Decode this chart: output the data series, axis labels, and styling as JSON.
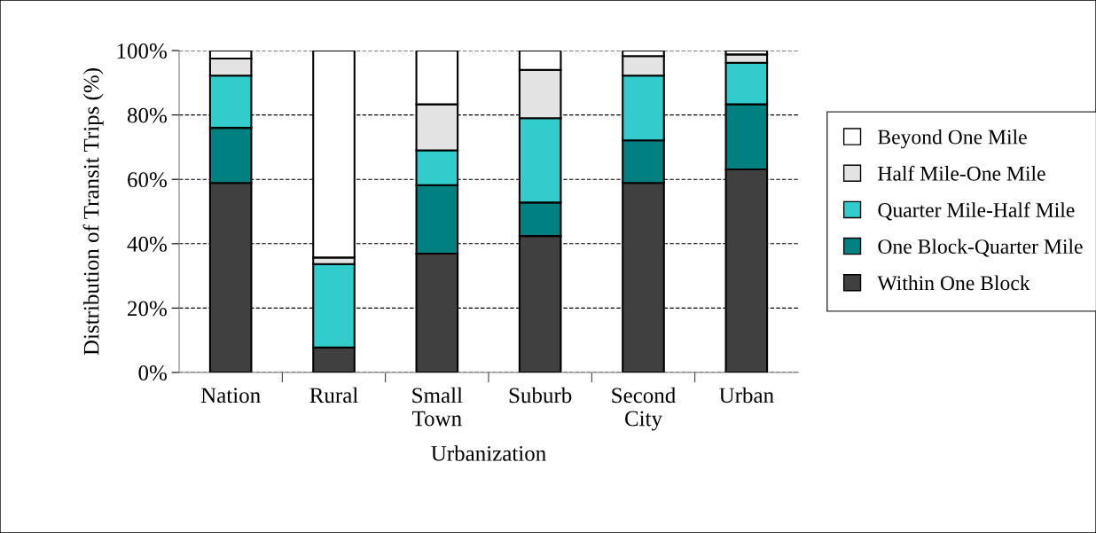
{
  "chart_data": {
    "type": "bar",
    "stacked": true,
    "xlabel": "Urbanization",
    "ylabel": "Distribution of Transit Trips (%)",
    "categories": [
      "Nation",
      "Rural",
      "Small\nTown",
      "Suburb",
      "Second\nCity",
      "Urban"
    ],
    "series": [
      {
        "name": "Within One Block",
        "color": "#404040",
        "values": [
          58.9,
          7.8,
          36.9,
          42.4,
          58.9,
          63.1
        ]
      },
      {
        "name": "One Block-Quarter Mile",
        "color": "#008080",
        "values": [
          17.1,
          0,
          21.3,
          10.4,
          13.2,
          20.2
        ]
      },
      {
        "name": "Quarter Mile-Half Mile",
        "color": "#33cccc",
        "values": [
          16.2,
          25.9,
          10.8,
          26.2,
          20.1,
          12.9
        ]
      },
      {
        "name": "Half Mile-One Mile",
        "color": "#e3e3e3",
        "values": [
          5.3,
          2.0,
          14.3,
          15.0,
          6.1,
          2.6
        ]
      },
      {
        "name": "Beyond One Mile",
        "color": "#ffffff",
        "values": [
          2.5,
          64.3,
          16.7,
          6.0,
          1.7,
          1.2
        ]
      }
    ],
    "ylim": [
      0,
      100
    ],
    "yticks": [
      {
        "value": 0,
        "label": "0%"
      },
      {
        "value": 20,
        "label": "20%"
      },
      {
        "value": 40,
        "label": "40%"
      },
      {
        "value": 60,
        "label": "60%"
      },
      {
        "value": 80,
        "label": "80%"
      },
      {
        "value": 100,
        "label": "100%"
      }
    ],
    "grid": "y",
    "legend": "right"
  }
}
